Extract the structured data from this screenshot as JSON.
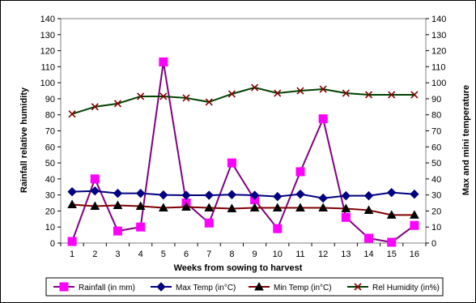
{
  "chart_data": {
    "type": "line",
    "title": "",
    "xlabel": "Weeks from sowing to harvest",
    "ylabel_left": "Rainfall relative humidity",
    "ylabel_right": "Max and mini temperature",
    "x": [
      1,
      2,
      3,
      4,
      5,
      6,
      7,
      8,
      9,
      10,
      11,
      12,
      13,
      14,
      15,
      16
    ],
    "ylim": [
      0,
      140
    ],
    "yticks": [
      0,
      10,
      20,
      30,
      40,
      50,
      60,
      70,
      80,
      90,
      100,
      110,
      120,
      130,
      140
    ],
    "grid": false,
    "legend_position": "bottom",
    "series": [
      {
        "name": "Rainfall (in mm)",
        "color": "#FF00FF",
        "line_color": "#800080",
        "marker": "square",
        "values": [
          1,
          40,
          7.5,
          10,
          113,
          25,
          12.5,
          50,
          27,
          9,
          44.5,
          77.5,
          16,
          3,
          0.5,
          11
        ]
      },
      {
        "name": "Max Temp (in°C)",
        "color": "#000080",
        "line_color": "#000080",
        "marker": "diamond",
        "values": [
          32,
          32.5,
          31,
          31,
          30,
          29.8,
          29.8,
          30.2,
          29.8,
          29,
          30.5,
          28,
          29.5,
          29.5,
          31.5,
          30.5
        ]
      },
      {
        "name": "Min Temp (in°C)",
        "color": "#000000",
        "line_color": "#800000",
        "marker": "triangle",
        "values": [
          24,
          23,
          23.5,
          23,
          22,
          22.5,
          22,
          21.5,
          22,
          22,
          22,
          22,
          21.5,
          20.5,
          17.5,
          17.5
        ]
      },
      {
        "name": "Rel Humidity  (in%)",
        "color": "#800000",
        "line_color": "#004000",
        "marker": "x",
        "values": [
          80.5,
          85,
          87,
          91.5,
          91.5,
          90.5,
          88,
          93,
          97,
          93.5,
          95,
          96,
          93.5,
          92.5,
          92.5,
          92.5
        ]
      }
    ]
  }
}
